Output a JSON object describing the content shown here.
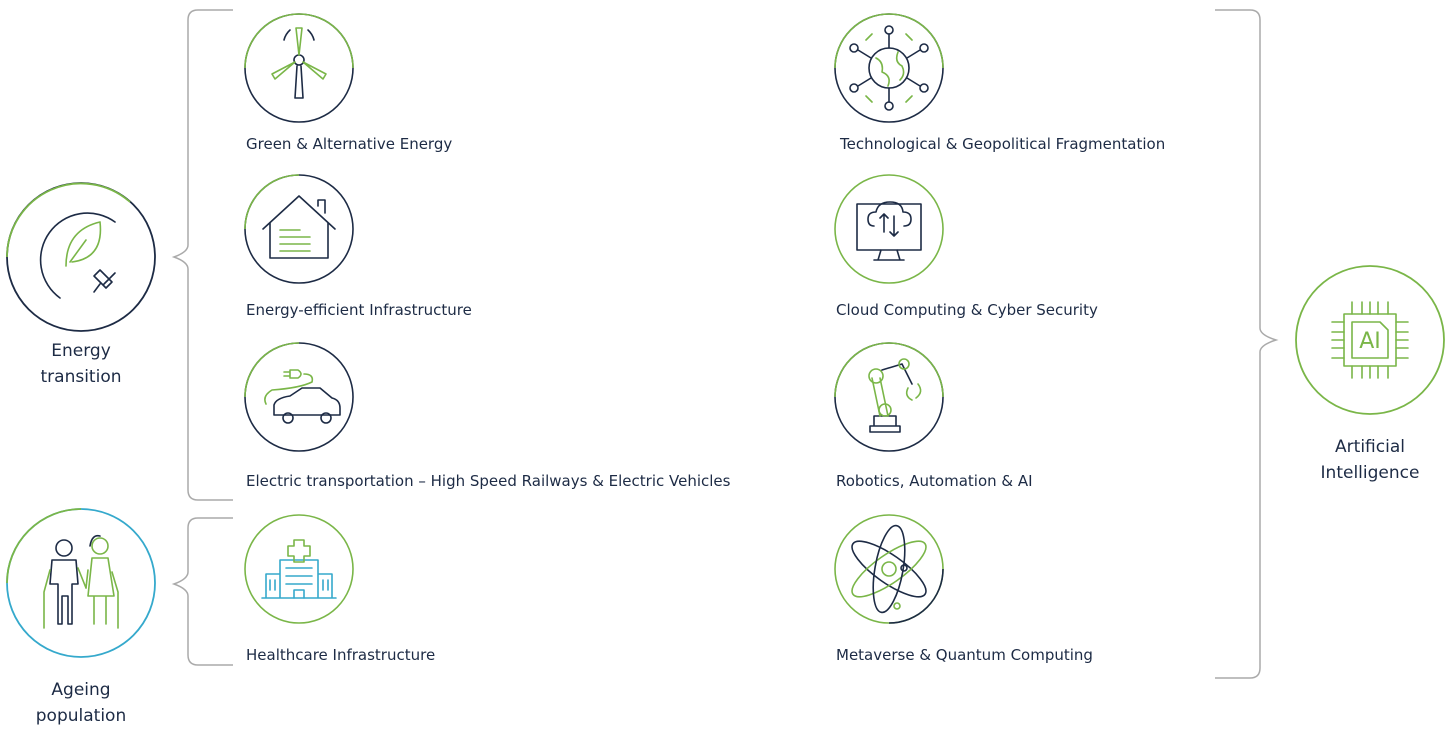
{
  "themes": [
    "Energy transition",
    "Ageing population",
    "Artificial Intelligence"
  ],
  "ai_icon_text": "AI",
  "left_items": [
    "Green & Alternative Energy",
    "Energy-efficient Infrastructure",
    "Electric transportation – High Speed Railways & Electric Vehicles",
    "Healthcare Infrastructure"
  ],
  "right_items": [
    "Technological & Geopolitical Fragmentation",
    "Cloud Computing & Cyber Security",
    "Robotics, Automation & AI",
    "Metaverse & Quantum Computing"
  ]
}
